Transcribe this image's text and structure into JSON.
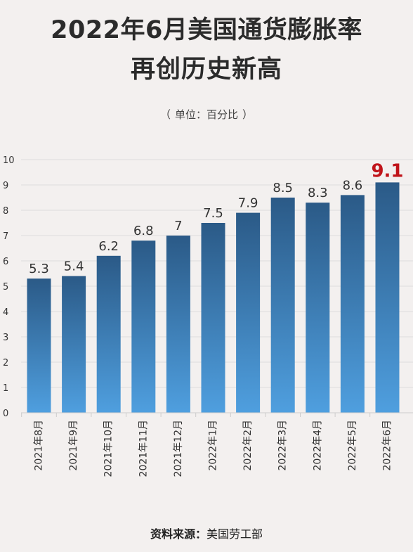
{
  "title_line1": "2022年6月美国通货膨胀率",
  "title_line2": "再创历史新高",
  "unit_note": "单位：百分比",
  "unit_open": "（",
  "unit_close": "）",
  "source_label": "资料来源：",
  "source_value": "美国劳工部",
  "colors": {
    "bar_top": "#2b5a87",
    "bar_bottom": "#4f9fdf",
    "highlight_label": "#c0141a",
    "label": "#333333",
    "grid": "#dcdcdc"
  },
  "chart_data": {
    "type": "bar",
    "categories": [
      "2021年8月",
      "2021年9月",
      "2021年10月",
      "2021年11月",
      "2021年12月",
      "2022年1月",
      "2022年2月",
      "2022年3月",
      "2022年4月",
      "2022年5月",
      "2022年6月"
    ],
    "values": [
      5.3,
      5.4,
      6.2,
      6.8,
      7,
      7.5,
      7.9,
      8.5,
      8.3,
      8.6,
      9.1
    ],
    "value_labels": [
      "5.3",
      "5.4",
      "6.2",
      "6.8",
      "7",
      "7.5",
      "7.9",
      "8.5",
      "8.3",
      "8.6",
      "9.1"
    ],
    "highlight_index": 10,
    "ylim": [
      0,
      10
    ],
    "yticks": [
      "0",
      "1",
      "2",
      "3",
      "4",
      "5",
      "6",
      "7",
      "8",
      "9",
      "10"
    ],
    "grid": true,
    "legend": "none"
  }
}
